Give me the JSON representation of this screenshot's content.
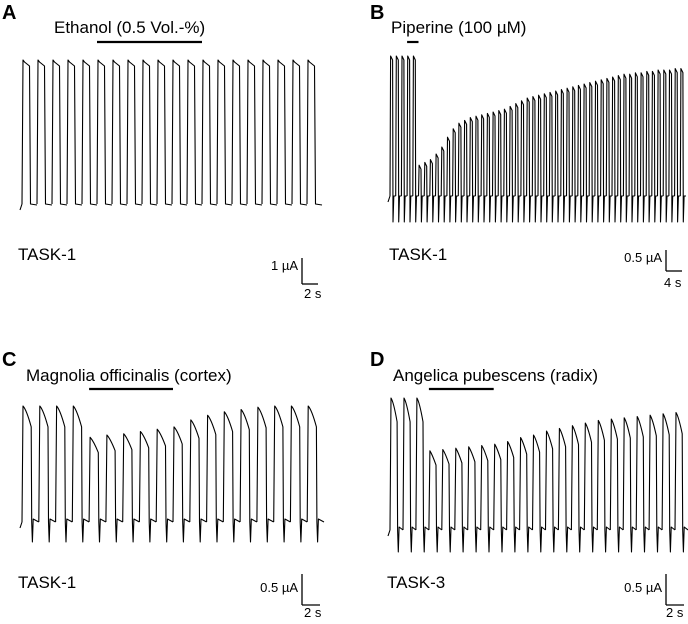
{
  "chart_data": [
    {
      "type": "line",
      "panel": "A",
      "compound": "Ethanol (0.5 Vol.-%)",
      "channel": "TASK-1",
      "scale_current": "1 µA",
      "scale_time": "2 s",
      "pulses": 20,
      "application_pulses": [
        5,
        12
      ],
      "relative_amplitude": [
        1,
        1,
        1,
        1,
        1,
        1,
        1,
        1,
        1,
        1,
        1,
        1,
        1,
        1,
        1,
        1,
        1,
        1,
        1,
        1
      ]
    },
    {
      "type": "line",
      "panel": "B",
      "compound": "Piperine (100 µM)",
      "channel": "TASK-1",
      "scale_current": "0.5 µA",
      "scale_time": "4 s",
      "pulses": 52,
      "application_pulses": [
        3,
        5
      ],
      "relative_amplitude": [
        1,
        1,
        1,
        1,
        1,
        0.22,
        0.24,
        0.26,
        0.3,
        0.35,
        0.42,
        0.48,
        0.52,
        0.54,
        0.56,
        0.57,
        0.58,
        0.59,
        0.6,
        0.61,
        0.62,
        0.64,
        0.66,
        0.68,
        0.7,
        0.71,
        0.72,
        0.73,
        0.74,
        0.75,
        0.76,
        0.77,
        0.78,
        0.79,
        0.8,
        0.81,
        0.82,
        0.83,
        0.84,
        0.85,
        0.86,
        0.87,
        0.87,
        0.88,
        0.88,
        0.89,
        0.89,
        0.9,
        0.9,
        0.9,
        0.91,
        0.91
      ]
    },
    {
      "type": "line",
      "panel": "C",
      "compound": "Magnolia officinalis (cortex)",
      "channel": "TASK-1",
      "scale_current": "0.5 µA",
      "scale_time": "2 s",
      "pulses": 18,
      "application_pulses": [
        4,
        9
      ],
      "relative_amplitude": [
        1,
        1,
        1,
        1,
        0.73,
        0.75,
        0.76,
        0.78,
        0.8,
        0.82,
        0.88,
        0.92,
        0.95,
        0.97,
        0.99,
        1,
        1,
        1
      ]
    },
    {
      "type": "line",
      "panel": "D",
      "compound": "Angelica pubescens (radix)",
      "channel": "TASK-3",
      "scale_current": "0.5 µA",
      "scale_time": "2 s",
      "pulses": 23,
      "application_pulses": [
        3,
        8
      ],
      "relative_amplitude": [
        1,
        1,
        1,
        0.6,
        0.61,
        0.62,
        0.63,
        0.64,
        0.65,
        0.67,
        0.7,
        0.72,
        0.75,
        0.77,
        0.79,
        0.81,
        0.83,
        0.84,
        0.85,
        0.86,
        0.87,
        0.88,
        0.89
      ]
    }
  ]
}
